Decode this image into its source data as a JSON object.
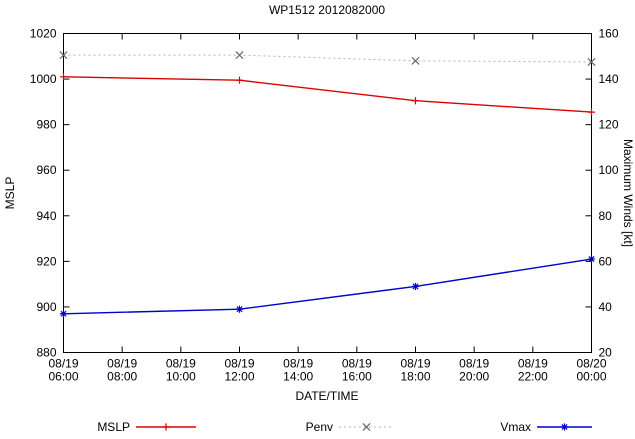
{
  "chart_data": {
    "type": "line",
    "title": "WP1512 2012082000",
    "xlabel": "DATE/TIME",
    "legend_position": "bottom",
    "grid": false,
    "y_left": {
      "label": "MSLP",
      "min": 880,
      "max": 1020,
      "tick_step": 20
    },
    "y_right": {
      "label": "Maximum Winds [kt]",
      "min": 20,
      "max": 160,
      "tick_step": 20
    },
    "x": {
      "hours": [
        6,
        8,
        10,
        12,
        14,
        16,
        18,
        20,
        22,
        24
      ],
      "tick_labels": [
        [
          "08/19",
          "06:00"
        ],
        [
          "08/19",
          "08:00"
        ],
        [
          "08/19",
          "10:00"
        ],
        [
          "08/19",
          "12:00"
        ],
        [
          "08/19",
          "14:00"
        ],
        [
          "08/19",
          "16:00"
        ],
        [
          "08/19",
          "18:00"
        ],
        [
          "08/19",
          "20:00"
        ],
        [
          "08/19",
          "22:00"
        ],
        [
          "08/20",
          "00:00"
        ]
      ]
    },
    "series": [
      {
        "name": "MSLP",
        "axis": "left",
        "color": "#dd0000",
        "marker": "plus",
        "marker_color": "#dd0000",
        "line": "solid",
        "x_hours": [
          6,
          12,
          18,
          24
        ],
        "values": [
          1001,
          999.5,
          990.5,
          985.5
        ]
      },
      {
        "name": "Penv",
        "axis": "left",
        "color": "#b3b3b3",
        "marker": "cross",
        "marker_color": "#666666",
        "line": "dotted",
        "x_hours": [
          6,
          12,
          18,
          24
        ],
        "values": [
          1010.5,
          1010.5,
          1008,
          1007.5
        ]
      },
      {
        "name": "Vmax",
        "axis": "right",
        "color": "#0000cc",
        "marker": "asterisk",
        "marker_color": "#0000cc",
        "line": "solid",
        "x_hours": [
          6,
          12,
          18,
          24
        ],
        "values": [
          37,
          39,
          49,
          61
        ]
      }
    ]
  }
}
